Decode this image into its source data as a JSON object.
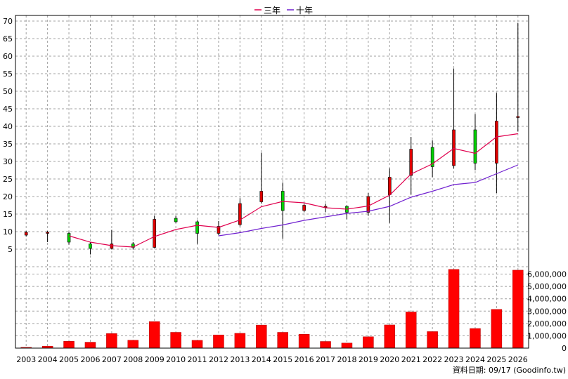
{
  "chart_data": {
    "type": "candlestick",
    "grid": true,
    "legend": {
      "position": "top-center",
      "entries": [
        {
          "name": "三年",
          "color": "#e0004e"
        },
        {
          "name": "十年",
          "color": "#7020d0"
        }
      ]
    },
    "price_axis": {
      "ylim": [
        0,
        70
      ],
      "ticks": [
        5,
        10,
        15,
        20,
        25,
        30,
        35,
        40,
        45,
        50,
        55,
        60,
        65,
        70
      ]
    },
    "volume_axis": {
      "ylim": [
        0,
        6600000
      ],
      "ticks": [
        "0",
        "1,000,000",
        "2,000,000",
        "3,000,000",
        "4,000,000",
        "5,000,000",
        "6,000,000"
      ],
      "tick_values": [
        0,
        1000000,
        2000000,
        3000000,
        4000000,
        5000000,
        6000000
      ]
    },
    "categories": [
      "2003",
      "2004",
      "2005",
      "2006",
      "2007",
      "2008",
      "2009",
      "2010",
      "2011",
      "2012",
      "2013",
      "2014",
      "2015",
      "2016",
      "2017",
      "2018",
      "2019",
      "2020",
      "2021",
      "2022",
      "2023",
      "2024",
      "2025",
      "2026"
    ],
    "candles": [
      {
        "open": 9.0,
        "close": 9.8,
        "high": 10.2,
        "low": 8.6
      },
      {
        "open": 9.6,
        "close": 9.8,
        "high": 10.2,
        "low": 7.0
      },
      {
        "open": 9.5,
        "close": 7.0,
        "high": 10.0,
        "low": 6.3
      },
      {
        "open": 6.5,
        "close": 5.2,
        "high": 7.0,
        "low": 3.5
      },
      {
        "open": 5.2,
        "close": 6.5,
        "high": 10.5,
        "low": 4.9
      },
      {
        "open": 6.5,
        "close": 5.5,
        "high": 7.0,
        "low": 4.9
      },
      {
        "open": 5.5,
        "close": 13.5,
        "high": 14.5,
        "low": 5.4
      },
      {
        "open": 13.8,
        "close": 12.8,
        "high": 14.5,
        "low": 12.5
      },
      {
        "open": 12.8,
        "close": 9.5,
        "high": 13.2,
        "low": 6.5
      },
      {
        "open": 9.5,
        "close": 11.5,
        "high": 13.0,
        "low": 9.0
      },
      {
        "open": 12.0,
        "close": 18.0,
        "high": 19.5,
        "low": 11.5
      },
      {
        "open": 18.5,
        "close": 21.5,
        "high": 32.5,
        "low": 18.0
      },
      {
        "open": 21.5,
        "close": 16.0,
        "high": 24.0,
        "low": 8.0
      },
      {
        "open": 16.0,
        "close": 17.5,
        "high": 18.0,
        "low": 15.5
      },
      {
        "open": 17.0,
        "close": 17.2,
        "high": 18.0,
        "low": 15.5
      },
      {
        "open": 17.2,
        "close": 15.5,
        "high": 17.5,
        "low": 13.5
      },
      {
        "open": 15.5,
        "close": 20.0,
        "high": 21.0,
        "low": 14.5
      },
      {
        "open": 20.5,
        "close": 25.5,
        "high": 28.0,
        "low": 12.5
      },
      {
        "open": 26.0,
        "close": 33.5,
        "high": 37.0,
        "low": 20.5
      },
      {
        "open": 34.0,
        "close": 28.5,
        "high": 36.0,
        "low": 25.5
      },
      {
        "open": 28.8,
        "close": 39.0,
        "high": 56.5,
        "low": 28.0
      },
      {
        "open": 39.0,
        "close": 29.5,
        "high": 43.5,
        "low": 27.5
      },
      {
        "open": 29.5,
        "close": 41.5,
        "high": 49.5,
        "low": 21.0
      },
      {
        "open": 42.5,
        "close": 42.8,
        "high": 69.5,
        "low": 38.5
      }
    ],
    "ma3": [
      null,
      null,
      8.8,
      7.0,
      6.0,
      5.6,
      8.6,
      10.6,
      11.8,
      11.2,
      13.3,
      17.1,
      18.6,
      18.2,
      16.8,
      16.4,
      17.3,
      20.4,
      26.4,
      29.3,
      33.7,
      32.3,
      37.0,
      37.9
    ],
    "ma10": [
      null,
      null,
      null,
      null,
      null,
      null,
      null,
      null,
      null,
      8.8,
      9.7,
      10.9,
      11.9,
      13.2,
      14.2,
      15.2,
      15.8,
      17.2,
      19.8,
      21.5,
      23.4,
      24.0,
      26.5,
      29.0
    ],
    "volume": [
      60000,
      160000,
      550000,
      480000,
      1180000,
      640000,
      2150000,
      1280000,
      630000,
      1070000,
      1200000,
      1870000,
      1280000,
      1120000,
      540000,
      410000,
      920000,
      1880000,
      2930000,
      1340000,
      6380000,
      1590000,
      3140000,
      6320000
    ],
    "up_color": "#e00000",
    "down_color": "#00d000",
    "volume_color": "#ff0000",
    "footnote": "資料日期: 09/17  (Goodinfo.tw)"
  }
}
